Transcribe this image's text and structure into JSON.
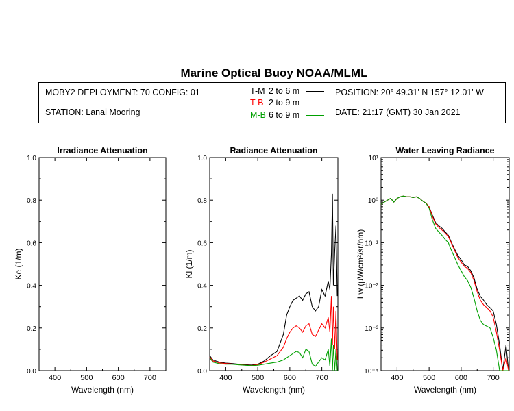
{
  "header": {
    "title": "Marine Optical Buoy NOAA/MLML",
    "deployment": "MOBY2 DEPLOYMENT: 70 CONFIG: 01",
    "station": "STATION: Lanai Mooring",
    "position": "POSITION: 20° 49.31' N   157° 12.01' W",
    "date": "DATE: 21:17 (GMT) 30 Jan 2021"
  },
  "legend": [
    {
      "label": "T-M",
      "range": "2 to 6  m",
      "color": "#000000"
    },
    {
      "label": "T-B",
      "range": "2 to 9  m",
      "color": "#ff0000"
    },
    {
      "label": "M-B",
      "range": "6 to 9  m",
      "color": "#00a000"
    }
  ],
  "chart_data": [
    {
      "type": "line",
      "title": "Irradiance Attenuation",
      "xlabel": "Wavelength (nm)",
      "ylabel": "Ke  (1/m)",
      "xlim": [
        350,
        750
      ],
      "ylim": [
        0,
        1
      ],
      "xticks": [
        "400",
        "500",
        "600",
        "700"
      ],
      "yticks": [
        "0.0",
        "0.2",
        "0.4",
        "0.6",
        "0.8",
        "1.0"
      ],
      "series": []
    },
    {
      "type": "line",
      "title": "Radiance Attenuation",
      "xlabel": "Wavelength (nm)",
      "ylabel": "Kl  (1/m)",
      "xlim": [
        350,
        750
      ],
      "ylim": [
        0,
        1
      ],
      "xticks": [
        "400",
        "500",
        "600",
        "700"
      ],
      "yticks": [
        "0.0",
        "0.2",
        "0.4",
        "0.6",
        "0.8",
        "1.0"
      ],
      "series": [
        {
          "name": "T-M",
          "color": "#000000",
          "x": [
            350,
            360,
            380,
            400,
            420,
            440,
            460,
            480,
            500,
            520,
            540,
            560,
            580,
            590,
            600,
            610,
            620,
            630,
            640,
            650,
            660,
            670,
            680,
            690,
            700,
            710,
            720,
            725,
            730,
            733,
            736,
            740,
            744,
            748
          ],
          "y": [
            0.07,
            0.05,
            0.04,
            0.035,
            0.033,
            0.03,
            0.028,
            0.026,
            0.03,
            0.045,
            0.07,
            0.09,
            0.17,
            0.26,
            0.3,
            0.33,
            0.34,
            0.35,
            0.33,
            0.36,
            0.37,
            0.3,
            0.28,
            0.3,
            0.38,
            0.35,
            0.42,
            0.38,
            0.55,
            0.83,
            0.4,
            0.55,
            0.68,
            0.35
          ]
        },
        {
          "name": "T-B",
          "color": "#ff0000",
          "x": [
            350,
            360,
            380,
            400,
            420,
            440,
            460,
            480,
            500,
            520,
            540,
            560,
            580,
            590,
            600,
            610,
            620,
            630,
            640,
            650,
            660,
            670,
            680,
            690,
            700,
            710,
            720,
            725,
            730,
            733,
            736,
            740,
            744,
            748
          ],
          "y": [
            0.065,
            0.045,
            0.036,
            0.033,
            0.031,
            0.028,
            0.026,
            0.024,
            0.028,
            0.04,
            0.055,
            0.07,
            0.11,
            0.15,
            0.18,
            0.2,
            0.21,
            0.2,
            0.18,
            0.21,
            0.22,
            0.17,
            0.16,
            0.19,
            0.22,
            0.2,
            0.25,
            0.18,
            0.35,
            0.12,
            0.3,
            0.1,
            0.28,
            0.05
          ]
        },
        {
          "name": "M-B",
          "color": "#00a000",
          "x": [
            350,
            360,
            380,
            400,
            420,
            440,
            460,
            480,
            500,
            520,
            540,
            560,
            580,
            590,
            600,
            610,
            620,
            630,
            640,
            650,
            660,
            670,
            680,
            690,
            700,
            710,
            720,
            725,
            730,
            733,
            736,
            740,
            744,
            748
          ],
          "y": [
            0.06,
            0.04,
            0.032,
            0.03,
            0.03,
            0.027,
            0.025,
            0.023,
            0.025,
            0.03,
            0.035,
            0.04,
            0.05,
            0.06,
            0.07,
            0.08,
            0.09,
            0.085,
            0.06,
            0.1,
            0.09,
            0.03,
            0.02,
            0.04,
            0.06,
            0.05,
            0.1,
            0.02,
            0.15,
            0.0,
            0.12,
            0.0,
            0.1,
            0.0
          ]
        }
      ]
    },
    {
      "type": "line",
      "title": "Water Leaving Radiance",
      "xlabel": "Wavelength (nm)",
      "ylabel": "Lw  (μW/cm²/sr/nm)",
      "yscale": "log",
      "xlim": [
        350,
        750
      ],
      "ylim": [
        0.0001,
        10
      ],
      "xticks": [
        "400",
        "500",
        "600",
        "700"
      ],
      "yticks": [
        "10⁻⁴",
        "10⁻³",
        "10⁻²",
        "10⁻¹",
        "10⁰",
        "10¹"
      ],
      "series": [
        {
          "name": "T-M",
          "color": "#000000",
          "x": [
            350,
            360,
            370,
            380,
            390,
            400,
            410,
            420,
            430,
            440,
            450,
            460,
            470,
            480,
            490,
            500,
            510,
            520,
            530,
            540,
            550,
            560,
            570,
            580,
            590,
            600,
            610,
            620,
            630,
            640,
            650,
            660,
            670,
            680,
            690,
            700,
            710,
            720,
            730,
            740,
            748
          ],
          "y": [
            0.8,
            0.9,
            1.0,
            1.1,
            0.9,
            1.1,
            1.2,
            1.25,
            1.2,
            1.2,
            1.15,
            1.2,
            1.1,
            0.95,
            0.85,
            0.7,
            0.45,
            0.3,
            0.25,
            0.22,
            0.18,
            0.15,
            0.1,
            0.07,
            0.05,
            0.04,
            0.03,
            0.028,
            0.022,
            0.015,
            0.008,
            0.0055,
            0.0045,
            0.0035,
            0.003,
            0.0025,
            0.0012,
            0.0004,
            0.0001,
            0.0004,
            0.0001
          ]
        },
        {
          "name": "T-B",
          "color": "#ff0000",
          "x": [
            350,
            360,
            370,
            380,
            390,
            400,
            410,
            420,
            430,
            440,
            450,
            460,
            470,
            480,
            490,
            500,
            510,
            520,
            530,
            540,
            550,
            560,
            570,
            580,
            590,
            600,
            610,
            620,
            630,
            640,
            650,
            660,
            670,
            680,
            690,
            700,
            710,
            720,
            730,
            740,
            748
          ],
          "y": [
            0.8,
            0.9,
            1.0,
            1.1,
            0.9,
            1.1,
            1.2,
            1.25,
            1.2,
            1.2,
            1.15,
            1.2,
            1.1,
            0.95,
            0.85,
            0.7,
            0.42,
            0.28,
            0.23,
            0.2,
            0.17,
            0.14,
            0.095,
            0.065,
            0.045,
            0.035,
            0.028,
            0.025,
            0.02,
            0.013,
            0.007,
            0.0045,
            0.0035,
            0.003,
            0.0025,
            0.0018,
            0.0008,
            0.0003,
            0.0001,
            0.0002,
            0.0001
          ]
        },
        {
          "name": "M-B",
          "color": "#00a000",
          "x": [
            350,
            360,
            370,
            380,
            390,
            400,
            410,
            420,
            430,
            440,
            450,
            460,
            470,
            480,
            490,
            500,
            510,
            520,
            530,
            540,
            550,
            560,
            570,
            580,
            590,
            600,
            610,
            620,
            630,
            640,
            650,
            660,
            670,
            680,
            690,
            700,
            710,
            720,
            730,
            740,
            748
          ],
          "y": [
            0.8,
            0.9,
            1.0,
            1.1,
            0.9,
            1.1,
            1.2,
            1.25,
            1.2,
            1.2,
            1.15,
            1.2,
            1.1,
            0.95,
            0.85,
            0.65,
            0.35,
            0.22,
            0.18,
            0.15,
            0.12,
            0.1,
            0.065,
            0.045,
            0.03,
            0.022,
            0.016,
            0.013,
            0.009,
            0.005,
            0.0025,
            0.0015,
            0.0012,
            0.0011,
            0.001,
            0.0006,
            0.0003,
            0.0001,
            0.0001,
            0.0001,
            0.0001
          ]
        }
      ]
    }
  ]
}
